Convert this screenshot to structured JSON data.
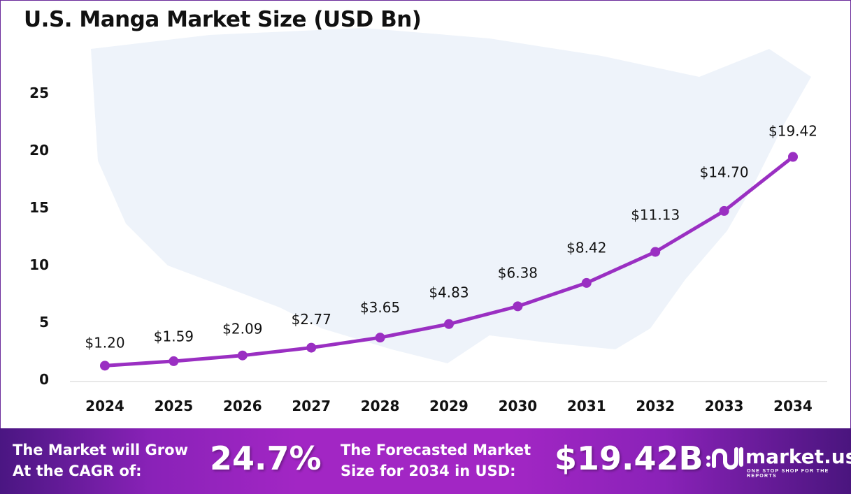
{
  "chart_data": {
    "type": "line",
    "title": "U.S. Manga Market Size (USD Bn)",
    "xlabel": "",
    "ylabel": "",
    "categories": [
      "2024",
      "2025",
      "2026",
      "2027",
      "2028",
      "2029",
      "2030",
      "2031",
      "2032",
      "2033",
      "2034"
    ],
    "series": [
      {
        "name": "Market Size",
        "values": [
          1.2,
          1.59,
          2.09,
          2.77,
          3.65,
          4.83,
          6.38,
          8.42,
          11.13,
          14.7,
          19.42
        ]
      }
    ],
    "data_labels": [
      "$1.20",
      "$1.59",
      "$2.09",
      "$2.77",
      "$3.65",
      "$4.83",
      "$6.38",
      "$8.42",
      "$11.13",
      "$14.70",
      "$19.42"
    ],
    "yticks": [
      "0",
      "5",
      "10",
      "15",
      "20",
      "25"
    ],
    "ylim": [
      0,
      25
    ],
    "grid": false,
    "line_color": "#9a2fc2"
  },
  "footer": {
    "cagr_text_1": "The Market will Grow",
    "cagr_text_2": "At the CAGR of:",
    "cagr_value": "24.7%",
    "forecast_text_1": "The Forecasted Market",
    "forecast_text_2": "Size for 2034 in USD:",
    "forecast_value": "$19.42B",
    "logo_name": "market.us",
    "logo_tagline": "ONE STOP SHOP FOR THE REPORTS"
  }
}
